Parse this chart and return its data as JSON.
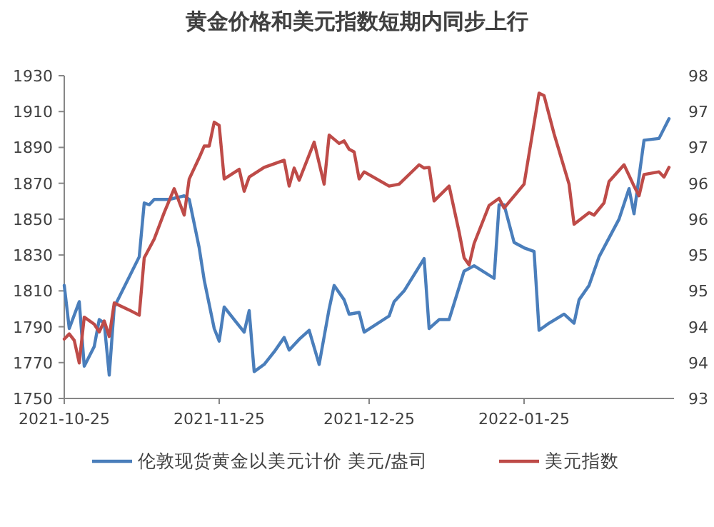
{
  "chart_data": {
    "type": "line",
    "title": "黄金价格和美元指数短期内同步上行",
    "xlim": [
      "2021-10-25",
      "2022-02-24"
    ],
    "xticks": [
      "2021-10-25",
      "2021-11-25",
      "2021-12-25",
      "2022-01-25"
    ],
    "ylim": [
      1750,
      1930
    ],
    "yticks": [
      1750,
      1770,
      1790,
      1810,
      1830,
      1850,
      1870,
      1890,
      1910,
      1930
    ],
    "y2lim": [
      93,
      98
    ],
    "y2ticks": [
      {
        "value": 93,
        "label": "93"
      },
      {
        "value": 93.556,
        "label": "94"
      },
      {
        "value": 94.111,
        "label": "94"
      },
      {
        "value": 94.667,
        "label": "95"
      },
      {
        "value": 95.222,
        "label": "95"
      },
      {
        "value": 95.778,
        "label": "96"
      },
      {
        "value": 96.333,
        "label": "96"
      },
      {
        "value": 96.889,
        "label": "97"
      },
      {
        "value": 97.444,
        "label": "97"
      },
      {
        "value": 98,
        "label": "98"
      }
    ],
    "legend": "bottom",
    "series": [
      {
        "name": "伦敦现货黄金以美元计价 美元/盎司",
        "color": "#4a7ebb",
        "x": [
          "2021-10-25",
          "2021-10-26",
          "2021-10-28",
          "2021-10-29",
          "2021-10-31",
          "2021-11-01",
          "2021-11-02",
          "2021-11-03",
          "2021-11-04",
          "2021-11-09",
          "2021-11-10",
          "2021-11-11",
          "2021-11-12",
          "2021-11-15",
          "2021-11-18",
          "2021-11-19",
          "2021-11-21",
          "2021-11-22",
          "2021-11-24",
          "2021-11-25",
          "2021-11-26",
          "2021-11-28",
          "2021-11-30",
          "2021-12-01",
          "2021-12-02",
          "2021-12-04",
          "2021-12-06",
          "2021-12-08",
          "2021-12-09",
          "2021-12-11",
          "2021-12-13",
          "2021-12-15",
          "2021-12-17",
          "2021-12-18",
          "2021-12-20",
          "2021-12-21",
          "2021-12-23",
          "2021-12-24",
          "2021-12-29",
          "2021-12-30",
          "2022-01-01",
          "2022-01-05",
          "2022-01-06",
          "2022-01-08",
          "2022-01-10",
          "2022-01-13",
          "2022-01-15",
          "2022-01-19",
          "2022-01-20",
          "2022-01-21",
          "2022-01-23",
          "2022-01-25",
          "2022-01-27",
          "2022-01-28",
          "2022-01-30",
          "2022-02-02",
          "2022-02-04",
          "2022-02-05",
          "2022-02-07",
          "2022-02-09",
          "2022-02-13",
          "2022-02-15",
          "2022-02-16",
          "2022-02-18",
          "2022-02-21",
          "2022-02-23"
        ],
        "values": [
          1813,
          1789,
          1804,
          1768,
          1779,
          1794,
          1792,
          1763,
          1801,
          1829,
          1859,
          1858,
          1861,
          1861,
          1863,
          1861,
          1834,
          1816,
          1789,
          1782,
          1801,
          1794,
          1787,
          1799,
          1765,
          1769,
          1776,
          1784,
          1777,
          1783,
          1788,
          1769,
          1800,
          1813,
          1805,
          1797,
          1798,
          1787,
          1796,
          1804,
          1810,
          1828,
          1789,
          1794,
          1794,
          1821,
          1824,
          1817,
          1858,
          1858,
          1837,
          1834,
          1832,
          1788,
          1792,
          1797,
          1792,
          1805,
          1813,
          1829,
          1850,
          1867,
          1853,
          1894,
          1895,
          1906
        ]
      },
      {
        "name": "美元指数",
        "color": "#be4b48",
        "axis": "y2",
        "x": [
          "2021-10-25",
          "2021-10-26",
          "2021-10-27",
          "2021-10-28",
          "2021-10-29",
          "2021-10-31",
          "2021-11-01",
          "2021-11-02",
          "2021-11-03",
          "2021-11-04",
          "2021-11-07",
          "2021-11-09",
          "2021-11-10",
          "2021-11-12",
          "2021-11-14",
          "2021-11-16",
          "2021-11-18",
          "2021-11-19",
          "2021-11-21",
          "2021-11-22",
          "2021-11-23",
          "2021-11-24",
          "2021-11-25",
          "2021-11-26",
          "2021-11-29",
          "2021-11-30",
          "2021-12-01",
          "2021-12-04",
          "2021-12-08",
          "2021-12-09",
          "2021-12-10",
          "2021-12-11",
          "2021-12-14",
          "2021-12-16",
          "2021-12-17",
          "2021-12-19",
          "2021-12-20",
          "2021-12-21",
          "2021-12-22",
          "2021-12-23",
          "2021-12-24",
          "2021-12-29",
          "2021-12-31",
          "2022-01-04",
          "2022-01-05",
          "2022-01-06",
          "2022-01-07",
          "2022-01-10",
          "2022-01-12",
          "2022-01-13",
          "2022-01-14",
          "2022-01-15",
          "2022-01-18",
          "2022-01-20",
          "2022-01-21",
          "2022-01-25",
          "2022-01-28",
          "2022-01-29",
          "2022-01-31",
          "2022-02-03",
          "2022-02-04",
          "2022-02-07",
          "2022-02-08",
          "2022-02-10",
          "2022-02-11",
          "2022-02-14",
          "2022-02-16",
          "2022-02-17",
          "2022-02-18",
          "2022-02-21",
          "2022-02-22",
          "2022-02-23"
        ],
        "values": [
          93.92,
          94.0,
          93.9,
          93.55,
          94.26,
          94.15,
          94.03,
          94.2,
          93.96,
          94.48,
          94.37,
          94.29,
          95.18,
          95.47,
          95.88,
          96.25,
          95.84,
          96.4,
          96.73,
          96.91,
          96.91,
          97.28,
          97.23,
          96.4,
          96.55,
          96.21,
          96.43,
          96.58,
          96.69,
          96.29,
          96.57,
          96.38,
          96.97,
          96.32,
          97.08,
          96.95,
          96.99,
          96.86,
          96.82,
          96.4,
          96.51,
          96.29,
          96.32,
          96.62,
          96.57,
          96.58,
          96.06,
          96.29,
          95.58,
          95.18,
          95.07,
          95.4,
          95.99,
          96.1,
          95.95,
          96.32,
          97.73,
          97.69,
          97.1,
          96.32,
          95.7,
          95.88,
          95.84,
          96.03,
          96.36,
          96.62,
          96.29,
          96.14,
          96.47,
          96.51,
          96.43,
          96.58
        ]
      }
    ]
  }
}
